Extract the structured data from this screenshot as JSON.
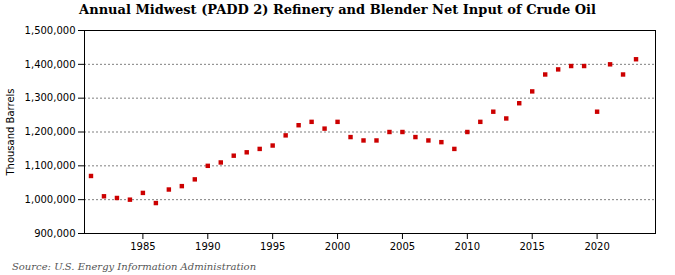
{
  "chart_data": {
    "type": "scatter",
    "title": "Annual Midwest (PADD 2) Refinery and Blender Net Input of Crude Oil",
    "ylabel": "Thousand Barrels",
    "source": "Source: U.S. Energy Information Administration",
    "color": "#cc0000",
    "marker": "square",
    "grid": "y",
    "x": [
      1981,
      1982,
      1983,
      1984,
      1985,
      1986,
      1987,
      1988,
      1989,
      1990,
      1991,
      1992,
      1993,
      1994,
      1995,
      1996,
      1997,
      1998,
      1999,
      2000,
      2001,
      2002,
      2003,
      2004,
      2005,
      2006,
      2007,
      2008,
      2009,
      2010,
      2011,
      2012,
      2013,
      2014,
      2015,
      2016,
      2017,
      2018,
      2019,
      2020,
      2021,
      2022,
      2023
    ],
    "values": [
      1070000,
      1010000,
      1005000,
      1000000,
      1020000,
      990000,
      1030000,
      1040000,
      1060000,
      1100000,
      1110000,
      1130000,
      1140000,
      1150000,
      1160000,
      1190000,
      1220000,
      1230000,
      1210000,
      1230000,
      1185000,
      1175000,
      1175000,
      1200000,
      1200000,
      1185000,
      1175000,
      1170000,
      1150000,
      1200000,
      1230000,
      1260000,
      1240000,
      1285000,
      1320000,
      1370000,
      1385000,
      1395000,
      1395000,
      1260000,
      1400000,
      1370000,
      1415000
    ],
    "xlim": [
      1980.5,
      2024.5
    ],
    "xticks": [
      1985,
      1990,
      1995,
      2000,
      2005,
      2010,
      2015,
      2020
    ],
    "ylim": [
      900000,
      1500000
    ],
    "yticks": [
      {
        "value": 900000,
        "label": "900,000"
      },
      {
        "value": 1000000,
        "label": "1,000,000"
      },
      {
        "value": 1100000,
        "label": "1,100,000"
      },
      {
        "value": 1200000,
        "label": "1,200,000"
      },
      {
        "value": 1300000,
        "label": "1,300,000"
      },
      {
        "value": 1400000,
        "label": "1,400,000"
      },
      {
        "value": 1500000,
        "label": "1,500,000"
      }
    ]
  }
}
